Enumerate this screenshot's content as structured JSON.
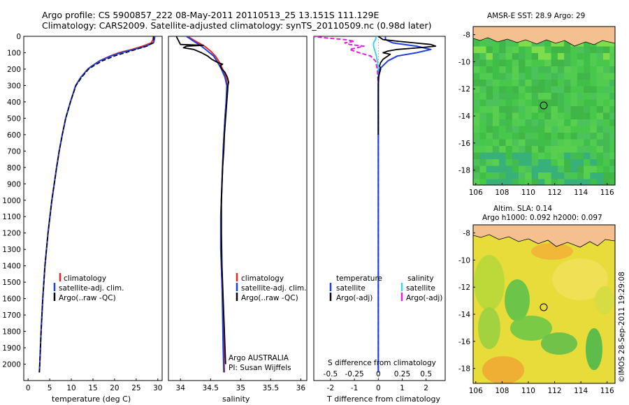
{
  "header": {
    "line1": "Argo profile: CS 5900857_222 08-May-2011 20110513_25 13.151S 111.129E",
    "line2": "Climatology: CARS2009. Satellite-adjusted climatology: synTS_20110509.nc (0.98d later)"
  },
  "colors": {
    "climatology": "#e8281e",
    "satellite": "#1f3fe0",
    "argo": "#000000",
    "salinity_satellite": "#3ad6e8",
    "salinity_argo": "#e020e0",
    "land": "#f4c090"
  },
  "chart_data": [
    {
      "type": "line",
      "panel": "temperature",
      "xlabel": "temperature (deg C)",
      "ylabel": "",
      "xlim": [
        -1,
        31
      ],
      "ylim": [
        2100,
        0
      ],
      "xticks": [
        "0",
        "5",
        "10",
        "15",
        "20",
        "25",
        "30"
      ],
      "yticks": [
        "0",
        "100",
        "200",
        "300",
        "400",
        "500",
        "600",
        "700",
        "800",
        "900",
        "1000",
        "1100",
        "1200",
        "1300",
        "1400",
        "1500",
        "1600",
        "1700",
        "1800",
        "1900",
        "2000"
      ],
      "legend": [
        "climatology",
        "satellite-adj. clim.",
        "Argo(..raw -QC)"
      ],
      "series": [
        {
          "name": "climatology",
          "y": [
            0,
            20,
            40,
            60,
            80,
            100,
            120,
            150,
            180,
            200,
            250,
            300,
            400,
            500,
            600,
            700,
            800,
            1000,
            1200,
            1400,
            1600,
            1800,
            2000,
            2050
          ],
          "x": [
            29.0,
            28.9,
            28.5,
            26.5,
            24.0,
            21.0,
            19.0,
            16.5,
            14.8,
            13.8,
            12.2,
            11.0,
            9.8,
            8.7,
            7.9,
            7.2,
            6.6,
            5.5,
            4.6,
            3.9,
            3.4,
            3.0,
            2.7,
            2.6
          ]
        },
        {
          "name": "satellite-adj. clim.",
          "y": [
            0,
            20,
            40,
            60,
            80,
            100,
            120,
            150,
            180,
            200,
            250,
            300,
            400,
            500,
            600,
            700,
            800,
            1000,
            1200,
            1400,
            1600,
            1800,
            2000,
            2050
          ],
          "x": [
            29.3,
            29.2,
            29.0,
            27.2,
            24.5,
            21.5,
            19.2,
            16.6,
            14.8,
            13.8,
            12.2,
            11.0,
            9.8,
            8.7,
            7.9,
            7.2,
            6.6,
            5.5,
            4.6,
            3.9,
            3.4,
            3.0,
            2.7,
            2.6
          ]
        },
        {
          "name": "Argo(..raw -QC)",
          "y": [
            0,
            20,
            40,
            60,
            80,
            100,
            120,
            150,
            180,
            200,
            250,
            300,
            400,
            500,
            600,
            700,
            800,
            1000,
            1200,
            1400,
            1600,
            1800,
            2000,
            2050
          ],
          "x": [
            29.0,
            29.0,
            28.8,
            27.5,
            25.0,
            22.5,
            20.0,
            17.2,
            15.2,
            14.0,
            12.4,
            11.1,
            9.8,
            8.7,
            7.9,
            7.2,
            6.6,
            5.5,
            4.6,
            3.9,
            3.4,
            3.0,
            2.7,
            2.6
          ]
        }
      ]
    },
    {
      "type": "line",
      "panel": "salinity",
      "xlabel": "salinity",
      "ylabel": "",
      "xlim": [
        33.8,
        36.1
      ],
      "ylim": [
        2100,
        0
      ],
      "xticks": [
        "34",
        "34.5",
        "35",
        "35.5",
        "36"
      ],
      "legend": [
        "climatology",
        "satellite-adj. clim.",
        "Argo(..raw -QC)"
      ],
      "annotations": [
        "Argo AUSTRALIA",
        "PI: Susan Wijffels"
      ],
      "series": [
        {
          "name": "climatology",
          "y": [
            0,
            30,
            60,
            90,
            120,
            160,
            200,
            250,
            300,
            400,
            500,
            700,
            900,
            1100,
            1300,
            1500,
            1700,
            1900,
            2050
          ],
          "x": [
            34.12,
            34.25,
            34.4,
            34.5,
            34.58,
            34.65,
            34.7,
            34.76,
            34.78,
            34.76,
            34.74,
            34.71,
            34.69,
            34.67,
            34.67,
            34.69,
            34.71,
            34.72,
            34.73
          ]
        },
        {
          "name": "satellite-adj. clim.",
          "y": [
            0,
            30,
            60,
            90,
            120,
            160,
            200,
            250,
            300,
            400,
            500,
            700,
            900,
            1100,
            1300,
            1500,
            1700,
            1900,
            2050
          ],
          "x": [
            34.1,
            34.22,
            34.35,
            34.45,
            34.55,
            34.62,
            34.68,
            34.74,
            34.77,
            34.76,
            34.74,
            34.71,
            34.69,
            34.67,
            34.67,
            34.69,
            34.7,
            34.71,
            34.72
          ]
        },
        {
          "name": "Argo(..raw -QC)",
          "y": [
            0,
            50,
            55,
            60,
            70,
            80,
            100,
            120,
            140,
            160,
            170,
            180,
            200,
            220,
            250,
            280,
            300,
            350,
            400,
            500,
            600,
            700,
            800,
            1000,
            1200,
            1400,
            1600,
            1800,
            2000
          ],
          "x": [
            33.93,
            34.0,
            34.38,
            34.1,
            34.05,
            34.22,
            34.35,
            34.45,
            34.52,
            34.62,
            34.7,
            34.66,
            34.69,
            34.74,
            34.78,
            34.8,
            34.79,
            34.78,
            34.77,
            34.75,
            34.73,
            34.72,
            34.7,
            34.68,
            34.68,
            34.69,
            34.71,
            34.73,
            34.75
          ]
        }
      ]
    },
    {
      "type": "line",
      "panel": "difference",
      "xlabel": "T difference from climatology",
      "xlabel_top": "S difference from climatology",
      "xlim_t": [
        -2.7,
        2.8
      ],
      "xticks_t": [
        "-2",
        "-1",
        "0",
        "1",
        "2"
      ],
      "xticks_s": [
        "-0.5",
        "-0.25",
        "0",
        "0.25",
        "0.5"
      ],
      "ylim": [
        2100,
        0
      ],
      "legend_temperature_title": "temperature",
      "legend_salinity_title": "salinity",
      "legend": [
        "satellite",
        "Argo(-adj)",
        "satellite",
        "Argo(-adj)"
      ],
      "series": [
        {
          "name": "T satellite",
          "y": [
            0,
            20,
            40,
            60,
            80,
            100,
            120,
            150,
            200,
            250,
            300,
            400,
            600,
            1000,
            2050
          ],
          "x": [
            0.3,
            0.3,
            0.6,
            1.6,
            2.2,
            1.6,
            0.8,
            0.4,
            0.05,
            0.02,
            0.0,
            0.0,
            0.0,
            0.0,
            0.0
          ]
        },
        {
          "name": "T Argo(-adj)",
          "y": [
            0,
            20,
            30,
            40,
            50,
            60,
            70,
            80,
            90,
            100,
            110,
            120,
            140,
            160,
            180,
            200,
            250,
            300,
            400,
            600
          ],
          "x": [
            0.0,
            0.2,
            0.8,
            1.5,
            2.2,
            2.4,
            1.7,
            0.8,
            0.4,
            0.2,
            0.5,
            0.4,
            0.2,
            0.1,
            0.05,
            0.1,
            0.0,
            0.0,
            0.0,
            0.0
          ]
        },
        {
          "name": "S satellite",
          "y": [
            0,
            20,
            40,
            60,
            80,
            100,
            120,
            150,
            200,
            300,
            500,
            1000,
            2050
          ],
          "x": [
            -0.02,
            -0.03,
            -0.05,
            -0.05,
            -0.04,
            -0.03,
            -0.02,
            -0.01,
            0.0,
            0.0,
            0.0,
            0.0,
            0.0
          ]
        },
        {
          "name": "S Argo(-adj)",
          "y": [
            0,
            10,
            20,
            30,
            40,
            50,
            60,
            80,
            100,
            120,
            150,
            200,
            300,
            500,
            1000,
            1500,
            2050
          ],
          "x": [
            -0.7,
            -0.55,
            -0.35,
            -0.25,
            -0.35,
            -0.3,
            -0.15,
            -0.3,
            -0.2,
            -0.08,
            -0.03,
            -0.01,
            0.0,
            0.0,
            0.0,
            0.0,
            0.0
          ]
        }
      ]
    }
  ],
  "maps": {
    "sst": {
      "title": "AMSR-E SST: 28.9 Argo: 29",
      "xticks": [
        "106",
        "108",
        "110",
        "112",
        "114",
        "116"
      ],
      "yticks": [
        "-8",
        "-10",
        "-12",
        "-14",
        "-16",
        "-18"
      ]
    },
    "sla": {
      "title_line1": "Altim. SLA: 0.14",
      "title_line2": "Argo h1000: 0.092 h2000: 0.097",
      "xticks": [
        "106",
        "108",
        "110",
        "112",
        "114",
        "116"
      ],
      "yticks": [
        "-8",
        "-10",
        "-12",
        "-14",
        "-16",
        "-18"
      ]
    }
  },
  "stamp": "©IMOS 28-Sep-2011 19:29:08"
}
